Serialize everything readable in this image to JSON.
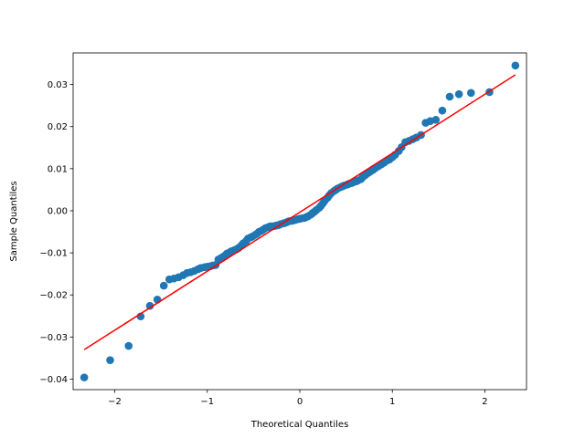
{
  "chart_data": {
    "type": "scatter",
    "title": "",
    "xlabel": "Theoretical Quantiles",
    "ylabel": "Sample Quantiles",
    "xlim": [
      -2.45,
      2.45
    ],
    "ylim": [
      -0.0425,
      0.0375
    ],
    "x_ticks": [
      {
        "value": -2,
        "label": "−2"
      },
      {
        "value": -1,
        "label": "−1"
      },
      {
        "value": 0,
        "label": "0"
      },
      {
        "value": 1,
        "label": "1"
      },
      {
        "value": 2,
        "label": "2"
      }
    ],
    "y_ticks": [
      {
        "value": -0.04,
        "label": "−0.04"
      },
      {
        "value": -0.03,
        "label": "−0.03"
      },
      {
        "value": -0.02,
        "label": "−0.02"
      },
      {
        "value": -0.01,
        "label": "−0.01"
      },
      {
        "value": 0.0,
        "label": "0.00"
      },
      {
        "value": 0.01,
        "label": "0.01"
      },
      {
        "value": 0.02,
        "label": "0.02"
      },
      {
        "value": 0.03,
        "label": "0.03"
      }
    ],
    "grid": false,
    "legend": "none",
    "colors": {
      "points": "#1f77b4",
      "reference_line": "#ff0000"
    },
    "reference_line": {
      "x": [
        -2.33,
        2.33
      ],
      "y": [
        -0.033,
        0.0323
      ]
    },
    "series": [
      {
        "x": [
          -2.33,
          -2.05,
          -1.85,
          -1.72,
          -1.62,
          -1.54,
          -1.47,
          -1.41,
          -1.36,
          -1.31,
          -1.26,
          -1.22,
          -1.18,
          -1.14,
          -1.1,
          -1.07,
          -1.03,
          -1.0,
          -0.97,
          -0.94,
          -0.91,
          -0.88,
          -0.85,
          -0.82,
          -0.79,
          -0.76,
          -0.74,
          -0.71,
          -0.68,
          -0.66,
          -0.63,
          -0.61,
          -0.58,
          -0.56,
          -0.53,
          -0.51,
          -0.48,
          -0.46,
          -0.44,
          -0.41,
          -0.39,
          -0.37,
          -0.34,
          -0.32,
          -0.3,
          -0.27,
          -0.25,
          -0.23,
          -0.21,
          -0.18,
          -0.16,
          -0.14,
          -0.12,
          -0.09,
          -0.07,
          -0.05,
          -0.02,
          0.0,
          0.02,
          0.05,
          0.07,
          0.09,
          0.12,
          0.14,
          0.16,
          0.18,
          0.21,
          0.23,
          0.25,
          0.27,
          0.3,
          0.32,
          0.34,
          0.37,
          0.39,
          0.41,
          0.44,
          0.46,
          0.48,
          0.51,
          0.53,
          0.56,
          0.58,
          0.61,
          0.63,
          0.66,
          0.68,
          0.71,
          0.74,
          0.76,
          0.79,
          0.82,
          0.85,
          0.88,
          0.91,
          0.94,
          0.97,
          1.0,
          1.03,
          1.07,
          1.1,
          1.14,
          1.18,
          1.22,
          1.26,
          1.31,
          1.36,
          1.41,
          1.47,
          1.54,
          1.62,
          1.72,
          1.85,
          2.05,
          2.33
        ],
        "y": [
          -0.0396,
          -0.0355,
          -0.0321,
          -0.0251,
          -0.0226,
          -0.0211,
          -0.0178,
          -0.0163,
          -0.0161,
          -0.0158,
          -0.0153,
          -0.0148,
          -0.0146,
          -0.0143,
          -0.0139,
          -0.0136,
          -0.0134,
          -0.0133,
          -0.0132,
          -0.013,
          -0.0129,
          -0.0116,
          -0.0112,
          -0.0108,
          -0.0102,
          -0.0099,
          -0.0096,
          -0.0094,
          -0.0091,
          -0.0088,
          -0.0082,
          -0.0077,
          -0.0072,
          -0.0066,
          -0.0063,
          -0.0061,
          -0.0057,
          -0.0054,
          -0.005,
          -0.0047,
          -0.0044,
          -0.0041,
          -0.0039,
          -0.0037,
          -0.0037,
          -0.0036,
          -0.0035,
          -0.0034,
          -0.0032,
          -0.003,
          -0.0029,
          -0.0027,
          -0.0025,
          -0.0024,
          -0.0023,
          -0.0022,
          -0.002,
          -0.0019,
          -0.0018,
          -0.0017,
          -0.0015,
          -0.0013,
          -0.0009,
          -0.0005,
          -0.0002,
          0.0002,
          0.0007,
          0.0012,
          0.0018,
          0.0024,
          0.0031,
          0.0037,
          0.0042,
          0.0047,
          0.005,
          0.0053,
          0.0056,
          0.0058,
          0.006,
          0.0062,
          0.0064,
          0.0066,
          0.0068,
          0.007,
          0.0072,
          0.0075,
          0.008,
          0.0085,
          0.009,
          0.0093,
          0.0097,
          0.0102,
          0.0106,
          0.011,
          0.0114,
          0.0119,
          0.0122,
          0.0127,
          0.0133,
          0.0142,
          0.0151,
          0.0163,
          0.0166,
          0.017,
          0.0174,
          0.018,
          0.0209,
          0.0213,
          0.0216,
          0.0238,
          0.0271,
          0.0277,
          0.028,
          0.0282,
          0.0345
        ]
      }
    ]
  }
}
